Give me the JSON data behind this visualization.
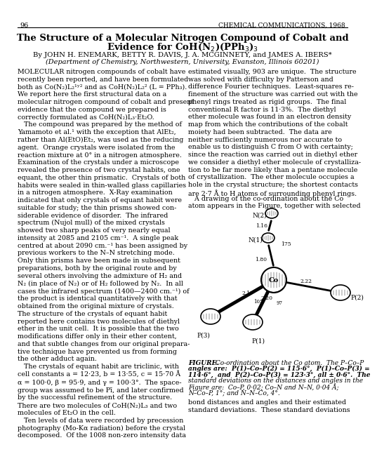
{
  "page_number": "96",
  "journal": "CHEMICAL COMMUNICATIONS, 1968",
  "title": "The Structure of a Molecular Nitrogen Compound of Cobalt and\nEvidence for CoH(N₂)(PPh₃)₃",
  "authors": "By JOHN H. ENEMARK, BETTY R. DAVIS, J. A. MCGINNETY, and JAMES A. IBERS*",
  "affiliation": "(Department of Chemistry, Northwestern, University, Evanston, Illinois 60201)",
  "col1_para1": "MOLECULAR nitrogen compounds of cobalt have\nrecently been reported, and have been formulated\nboth as Co(N₂)L₂¹ʸ² and as CoH(N₂)L₂² (L = PPh₃).\nWe report here the first structural data on a\nmolecular nitrogen compound of cobalt and present\nevidence that the compound we prepared is\ncorrectly formulated as CoH(N₂)L₃·Et₂O.",
  "col1_para2": "  The compound was prepared by the method of\nYamamoto et al.¹ with the exception that AlEt₂,\nrather than Al(EtO)Et₂, was used as the reducing\nagent.  Orange crystals were isolated from the\nreaction mixture at 0° in a nitrogen atmosphere.\nExamination of the crystals under a microscope\nrevealed the presence of two crystal habits, one\nequant, the other thin prismatic.  Crystals of both\nhabits were sealed in thin-walled glass capillaries\nin a nitrogen atmosphere.  X-Ray examination\nindicated that only crystals of equant habit were\nsuitable for study; the thin prisms showed con-\nsiderable evidence of disorder.  The infrared\nspectrum (Nujol mull) of the mixed crystals\nshowed two sharp peaks of very nearly equal\nintensity at 2085 and 2105 cm⁻¹.  A single peak\ncentred at about 2090 cm.⁻¹ has been assigned by\nprevious workers to the N–N stretching mode.\nOnly thin prisms have been made in subsequent\npreparations, both by the original route and by\nseveral others involving the admixture of H₂ and\nN₂ (in place of N₂) or of H₂ followed by N₂.  In all\ncases the infrared spectrum (1400—2400 cm.⁻¹) of\nthe product is identical quantitatively with that\nobtained from the original mixture of crystals.\nThe structure of the crystals of equant habit\nreported here contains two molecules of diethyl\nether in the unit cell.  It is possible that the two\nmodifications differ only in their ether content,\nand that subtle changes from our original prepara-\ntive technique have prevented us from forming\nthe other adduct again.",
  "col1_para3": "  The crystals of equant habit are triclinic, with\ncell constants a = 12·23, b = 13·55, c = 15·70 Å\nα = 100·0, β = 95·9, and γ = 100·3°.  The space-\ngroup was assumed to be Pï¿½, and later confirmed\nby the successful refinement of the structure.\nThere are two molecules of CoH(N₂)L₃ and two\nmolecules of Et₂O in the cell.",
  "col1_para4": "  Ten levels of data were recorded by precession\nphotography (Mo-Kα radiation) before the crystal\ndecomposed.  Of the 1008 non-zero intensity data",
  "col2_para1": "estimated visually, 903 are unique.  The structure\nwas solved with difficulty by Patterson and\ndifference Fourier techniques.  Least-squares re-\nfinement of the structure was carried out with the\nphenyl rings treated as rigid groups.  The final\nconventional R factor is 11·3%.  The diethyl\nether molecule was found in an electron density\nmap from which the contributions of the cobalt\nmoiety had been subtracted.  The data are\nneither sufficiently numerous nor accurate to\nenable us to distinguish C from O with certainty;\nsince the reaction was carried out in diethyl ether\nwe consider a diethyl ether molecule of crystalliza-\ntion to be far more likely than a pentane molecule\nof crystallization.  The ether molecule occupies a\nhole in the crystal structure; the shortest contacts\nare 2·7 Å to H atoms of surrounding phenyl rings.",
  "col2_para2": "  A drawing of the co-ordination about the Co\natom appears in the Figure, together with selected",
  "col2_para3": "bond distances and angles and their estimated\nstandard deviations.  These standard deviations",
  "fig_caption": "FIGURE.  Co-ordination about the Co atom.  The P–Co–P\nangles are:  P(1)–Co–P(2) = 115·6°,  P(1)–Co–P(3) =\n114·6°,  and  P(2)–Co–P(3) = 123·3°, all ± 0·6°.  The\nstandard deviations on the distances and angles in the\nFigure are:  Co–P, 0·02; Co–N and N–N, 0·04 Å;\nN–Co–P, 1°; and N–N–Co, 4°.",
  "background_color": "#ffffff"
}
